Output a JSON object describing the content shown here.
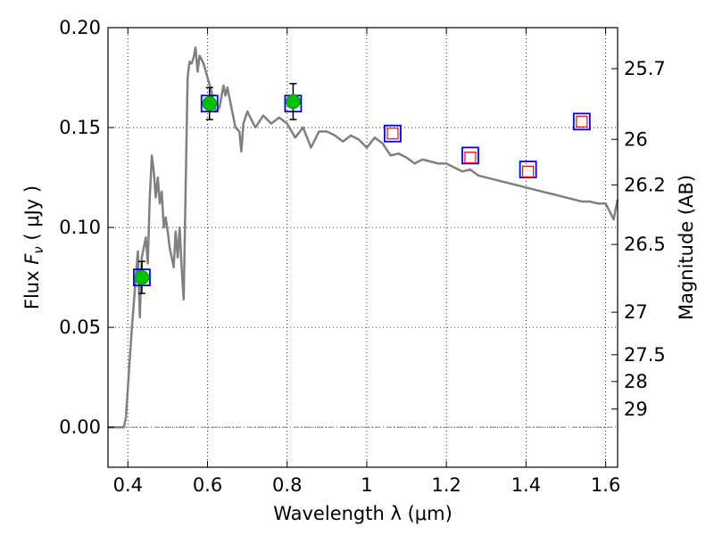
{
  "chart_data": {
    "type": "scatter",
    "title": "",
    "xlabel": "Wavelength  λ (μm)",
    "ylabel": "Flux  F_ν  ( μJy )",
    "y2label": "Magnitude (AB)",
    "xlim": [
      0.35,
      1.63
    ],
    "ylim": [
      -0.02,
      0.2
    ],
    "grid": true,
    "x_ticks": [
      0.4,
      0.6,
      0.8,
      1.0,
      1.2,
      1.4,
      1.6
    ],
    "x_tick_labels": [
      "0.4",
      "0.6",
      "0.8",
      "1",
      "1.2",
      "1.4",
      "1.6"
    ],
    "y_ticks": [
      0.0,
      0.05,
      0.1,
      0.15,
      0.2
    ],
    "y_tick_labels": [
      "0.00",
      "0.05",
      "0.10",
      "0.15",
      "0.20"
    ],
    "y2_ticks": [
      {
        "label": "25.7",
        "flux": 0.1795
      },
      {
        "label": "26",
        "flux": 0.1441
      },
      {
        "label": "26.2",
        "flux": 0.1213
      },
      {
        "label": "26.5",
        "flux": 0.0915
      },
      {
        "label": "27",
        "flux": 0.0576
      },
      {
        "label": "27.5",
        "flux": 0.0363
      },
      {
        "label": "28",
        "flux": 0.0229
      },
      {
        "label": "29",
        "flux": 0.0091
      }
    ],
    "series": [
      {
        "kind": "model-sed-line",
        "color": "#808080",
        "x": [
          0.35,
          0.39,
          0.395,
          0.4,
          0.41,
          0.42,
          0.425,
          0.43,
          0.435,
          0.44,
          0.445,
          0.45,
          0.455,
          0.46,
          0.465,
          0.47,
          0.475,
          0.48,
          0.485,
          0.49,
          0.495,
          0.5,
          0.505,
          0.51,
          0.515,
          0.52,
          0.525,
          0.53,
          0.535,
          0.54,
          0.55,
          0.555,
          0.56,
          0.565,
          0.57,
          0.575,
          0.58,
          0.59,
          0.6,
          0.61,
          0.62,
          0.63,
          0.64,
          0.645,
          0.65,
          0.66,
          0.67,
          0.68,
          0.685,
          0.69,
          0.7,
          0.72,
          0.74,
          0.76,
          0.78,
          0.8,
          0.82,
          0.84,
          0.86,
          0.88,
          0.9,
          0.92,
          0.94,
          0.96,
          0.98,
          1.0,
          1.02,
          1.04,
          1.06,
          1.08,
          1.1,
          1.12,
          1.14,
          1.16,
          1.18,
          1.2,
          1.22,
          1.24,
          1.26,
          1.28,
          1.3,
          1.32,
          1.34,
          1.36,
          1.38,
          1.4,
          1.42,
          1.44,
          1.46,
          1.48,
          1.5,
          1.52,
          1.54,
          1.56,
          1.58,
          1.6,
          1.61,
          1.62,
          1.63
        ],
        "y": [
          0.0,
          0.0,
          0.005,
          0.02,
          0.05,
          0.075,
          0.088,
          0.055,
          0.085,
          0.09,
          0.095,
          0.082,
          0.115,
          0.136,
          0.128,
          0.115,
          0.125,
          0.112,
          0.118,
          0.1,
          0.105,
          0.098,
          0.09,
          0.085,
          0.08,
          0.098,
          0.085,
          0.1,
          0.08,
          0.064,
          0.175,
          0.183,
          0.182,
          0.185,
          0.19,
          0.178,
          0.186,
          0.182,
          0.175,
          0.168,
          0.158,
          0.16,
          0.171,
          0.166,
          0.17,
          0.16,
          0.15,
          0.148,
          0.138,
          0.152,
          0.158,
          0.15,
          0.156,
          0.152,
          0.155,
          0.152,
          0.145,
          0.15,
          0.14,
          0.148,
          0.148,
          0.146,
          0.143,
          0.146,
          0.144,
          0.14,
          0.145,
          0.142,
          0.136,
          0.137,
          0.135,
          0.132,
          0.134,
          0.133,
          0.132,
          0.132,
          0.13,
          0.128,
          0.129,
          0.126,
          0.125,
          0.124,
          0.123,
          0.122,
          0.121,
          0.12,
          0.119,
          0.118,
          0.117,
          0.116,
          0.115,
          0.114,
          0.113,
          0.113,
          0.112,
          0.112,
          0.108,
          0.104,
          0.114
        ]
      },
      {
        "kind": "observed-photometry",
        "marker": "circle",
        "color": "#00c000",
        "x": [
          0.435,
          0.605,
          0.815
        ],
        "y": [
          0.075,
          0.162,
          0.163
        ],
        "yerr": [
          0.008,
          0.008,
          0.009
        ]
      },
      {
        "kind": "model-photometry-box",
        "marker": "square",
        "color": "#0000ff",
        "x": [
          0.435,
          0.605,
          0.815,
          1.065,
          1.26,
          1.405,
          1.54
        ],
        "y": [
          0.075,
          0.162,
          0.162,
          0.147,
          0.136,
          0.129,
          0.153
        ]
      },
      {
        "kind": "upper-limit-box",
        "marker": "square",
        "color": "#ff0000",
        "x": [
          1.065,
          1.26,
          1.405,
          1.54
        ],
        "y": [
          0.147,
          0.135,
          0.128,
          0.153
        ]
      }
    ],
    "colors": {
      "line": "#808080",
      "circle": "#00c000",
      "box_outer": "#0000ff",
      "box_inner": "#ff0000",
      "grid": "#000000",
      "zero_line": "#808080"
    }
  }
}
